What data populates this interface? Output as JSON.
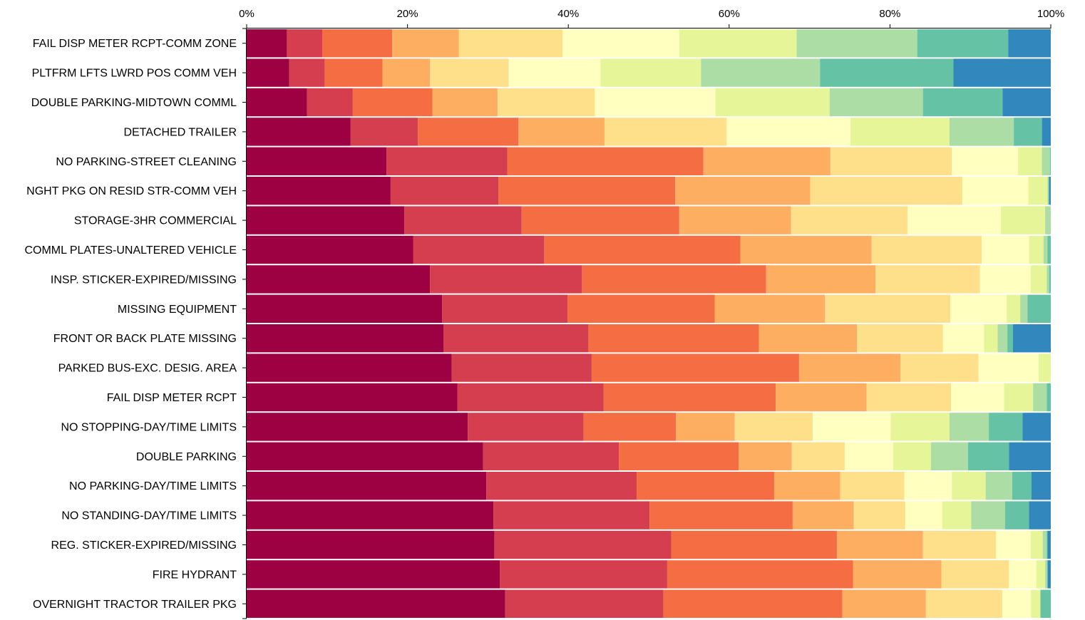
{
  "chart_data": {
    "type": "bar",
    "orientation": "horizontal",
    "stacked": true,
    "normalized": true,
    "title": "",
    "xlabel": "",
    "ylabel": "",
    "xlim": [
      0,
      100
    ],
    "x_ticks": [
      "0%",
      "20%",
      "40%",
      "60%",
      "80%",
      "100%"
    ],
    "x_tick_values": [
      0,
      20,
      40,
      60,
      80,
      100
    ],
    "x_axis_position": "top",
    "grid": false,
    "legend": "none",
    "colors": [
      "#9e0142",
      "#d53e4f",
      "#f46d43",
      "#fdae61",
      "#fee08b",
      "#ffffbf",
      "#e6f598",
      "#abdda4",
      "#66c2a5",
      "#3288bd"
    ],
    "categories": [
      "FAIL DISP METER RCPT-COMM ZONE",
      "PLTFRM LFTS LWRD POS COMM VEH",
      "DOUBLE PARKING-MIDTOWN COMML",
      "DETACHED TRAILER",
      "NO PARKING-STREET CLEANING",
      "NGHT PKG ON RESID STR-COMM VEH",
      "STORAGE-3HR COMMERCIAL",
      "COMML PLATES-UNALTERED VEHICLE",
      "INSP. STICKER-EXPIRED/MISSING",
      "MISSING EQUIPMENT",
      "FRONT OR BACK PLATE MISSING",
      "PARKED BUS-EXC. DESIG. AREA",
      "FAIL DISP METER RCPT",
      "NO STOPPING-DAY/TIME LIMITS",
      "DOUBLE PARKING",
      "NO PARKING-DAY/TIME LIMITS",
      "NO STANDING-DAY/TIME LIMITS",
      "REG. STICKER-EXPIRED/MISSING",
      "FIRE HYDRANT",
      "OVERNIGHT TRACTOR TRAILER PKG"
    ],
    "values": [
      [
        5.0,
        4.4,
        8.7,
        8.3,
        12.9,
        14.5,
        14.6,
        15.0,
        11.3,
        5.3
      ],
      [
        5.3,
        4.4,
        7.2,
        5.9,
        9.8,
        11.4,
        12.5,
        14.8,
        16.6,
        12.1
      ],
      [
        7.5,
        5.7,
        9.9,
        8.1,
        12.1,
        15.0,
        14.2,
        11.6,
        9.9,
        6.0
      ],
      [
        12.9,
        8.4,
        12.5,
        10.7,
        15.2,
        15.4,
        12.3,
        8.0,
        3.5,
        1.1
      ],
      [
        17.4,
        15.0,
        24.4,
        15.8,
        15.1,
        8.2,
        3.0,
        1.0,
        0.1,
        0.0
      ],
      [
        17.9,
        13.4,
        22.0,
        16.8,
        18.9,
        8.2,
        2.4,
        0.1,
        0.1,
        0.2
      ],
      [
        19.6,
        14.6,
        19.6,
        13.9,
        14.5,
        11.6,
        5.5,
        0.7,
        0.0,
        0.0
      ],
      [
        20.7,
        16.3,
        24.4,
        16.3,
        13.7,
        5.9,
        1.8,
        0.5,
        0.4,
        0.0
      ],
      [
        22.8,
        18.9,
        22.9,
        13.6,
        13.0,
        6.3,
        2.0,
        0.3,
        0.2,
        0.0
      ],
      [
        24.3,
        15.6,
        18.3,
        13.7,
        15.6,
        7.0,
        1.7,
        0.9,
        2.9,
        0.0
      ],
      [
        24.5,
        18.0,
        21.2,
        12.2,
        10.7,
        5.1,
        1.7,
        1.2,
        0.7,
        4.7
      ],
      [
        25.5,
        17.4,
        25.8,
        12.6,
        9.7,
        7.5,
        1.5,
        0.0,
        0.0,
        0.0
      ],
      [
        26.2,
        18.2,
        21.4,
        11.3,
        10.5,
        6.6,
        3.6,
        1.7,
        0.5,
        0.0
      ],
      [
        27.5,
        14.4,
        11.5,
        7.3,
        9.7,
        9.7,
        7.3,
        4.9,
        4.2,
        3.5
      ],
      [
        29.4,
        16.9,
        14.9,
        6.6,
        6.6,
        6.0,
        4.7,
        4.6,
        5.1,
        5.2
      ],
      [
        29.8,
        18.7,
        17.1,
        8.2,
        8.0,
        5.9,
        4.2,
        3.3,
        2.4,
        2.4
      ],
      [
        30.7,
        19.4,
        17.8,
        7.6,
        6.4,
        4.6,
        3.6,
        4.2,
        3.0,
        2.7
      ],
      [
        30.8,
        22.0,
        20.6,
        10.7,
        9.1,
        4.3,
        1.5,
        0.5,
        0.1,
        0.4
      ],
      [
        31.5,
        20.8,
        23.1,
        11.0,
        8.4,
        3.4,
        1.1,
        0.3,
        0.0,
        0.4
      ],
      [
        32.5,
        19.9,
        22.5,
        10.5,
        9.6,
        3.6,
        1.2,
        0.0,
        1.3,
        0.0
      ]
    ]
  }
}
